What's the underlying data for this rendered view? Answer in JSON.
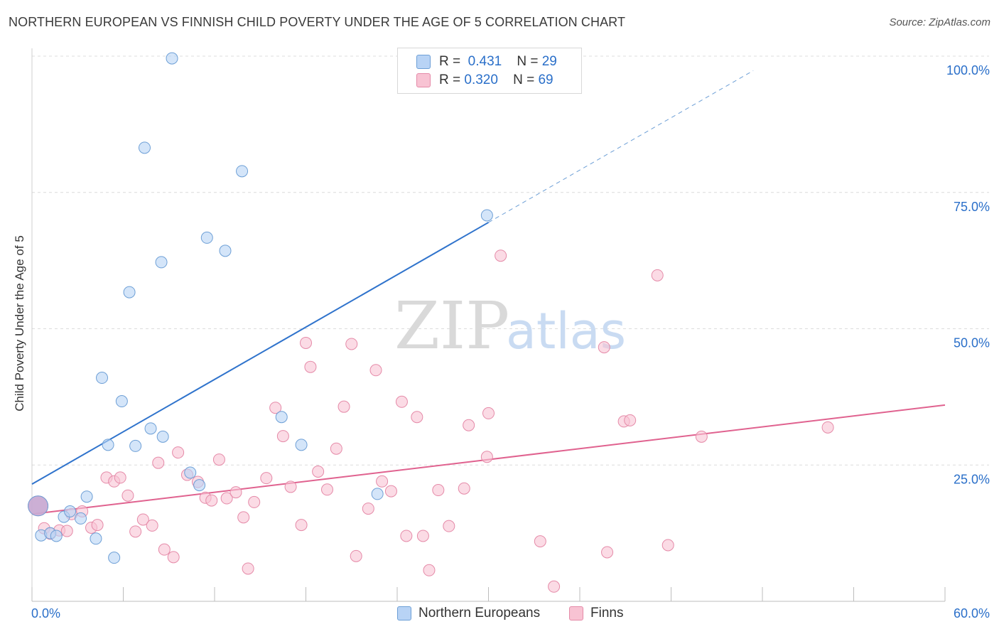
{
  "title": "NORTHERN EUROPEAN VS FINNISH CHILD POVERTY UNDER THE AGE OF 5 CORRELATION CHART",
  "source": "Source: ZipAtlas.com",
  "watermark": {
    "zip": "ZIP",
    "atlas": "atlas"
  },
  "legend": {
    "rows": [
      {
        "r_label": "R =",
        "r_value": "0.431",
        "n_label": "N =",
        "n_value": "29"
      },
      {
        "r_label": "R =",
        "r_value": "0.320",
        "n_label": "N =",
        "n_value": "69"
      }
    ]
  },
  "colors": {
    "blue_fill": "#b8d3f5",
    "blue_stroke": "#6d9fd6",
    "blue_line": "#2f73cc",
    "pink_fill": "#f8c3d3",
    "pink_stroke": "#e58aa8",
    "pink_line": "#e0628f",
    "axis_label": "#2a6fc9",
    "grid": "#dcdcdc"
  },
  "chart_data": {
    "type": "scatter",
    "title": "NORTHERN EUROPEAN VS FINNISH CHILD POVERTY UNDER THE AGE OF 5 CORRELATION CHART",
    "xlabel": "",
    "ylabel": "Child Poverty Under the Age of 5",
    "xlim": [
      0,
      60
    ],
    "ylim": [
      0,
      100
    ],
    "x_tick_labels": [
      "0.0%",
      "60.0%"
    ],
    "y_tick_labels": [
      {
        "value": 100,
        "label": "100.0%"
      },
      {
        "value": 75,
        "label": "75.0%"
      },
      {
        "value": 50,
        "label": "50.0%"
      },
      {
        "value": 25,
        "label": "25.0%"
      }
    ],
    "grid": true,
    "legend_position": "top-center",
    "series": [
      {
        "name": "Northern Europeans",
        "R": 0.431,
        "N": 29,
        "trend": {
          "x0": 0,
          "y0": 21.5,
          "x1": 30,
          "y1": 69.5,
          "dash_to_x": 47.4
        },
        "points": [
          [
            0.4,
            17.5
          ],
          [
            0.6,
            12.1
          ],
          [
            1.2,
            12.5
          ],
          [
            1.6,
            12.0
          ],
          [
            2.1,
            15.5
          ],
          [
            2.5,
            16.5
          ],
          [
            3.2,
            15.2
          ],
          [
            3.6,
            19.2
          ],
          [
            4.2,
            11.5
          ],
          [
            4.6,
            41.0
          ],
          [
            5.0,
            28.7
          ],
          [
            5.4,
            8.0
          ],
          [
            5.9,
            36.7
          ],
          [
            6.4,
            56.7
          ],
          [
            6.8,
            28.5
          ],
          [
            7.4,
            83.2
          ],
          [
            7.8,
            31.7
          ],
          [
            8.5,
            62.2
          ],
          [
            8.6,
            30.2
          ],
          [
            9.2,
            99.6
          ],
          [
            10.4,
            23.6
          ],
          [
            11.0,
            21.3
          ],
          [
            11.5,
            66.7
          ],
          [
            12.7,
            64.3
          ],
          [
            13.8,
            78.9
          ],
          [
            16.4,
            33.8
          ],
          [
            17.7,
            28.7
          ],
          [
            22.7,
            19.7
          ],
          [
            29.9,
            70.8
          ]
        ]
      },
      {
        "name": "Finns",
        "R": 0.32,
        "N": 69,
        "trend": {
          "x0": 0,
          "y0": 16.0,
          "x1": 60,
          "y1": 36.0
        },
        "points": [
          [
            0.4,
            17.5
          ],
          [
            0.8,
            13.4
          ],
          [
            1.2,
            12.4
          ],
          [
            1.8,
            13.0
          ],
          [
            2.3,
            12.9
          ],
          [
            2.6,
            16.0
          ],
          [
            3.3,
            16.5
          ],
          [
            3.9,
            13.5
          ],
          [
            4.3,
            14.0
          ],
          [
            4.9,
            22.7
          ],
          [
            5.4,
            22.0
          ],
          [
            5.8,
            22.7
          ],
          [
            6.3,
            19.4
          ],
          [
            6.8,
            12.8
          ],
          [
            7.3,
            15.0
          ],
          [
            7.9,
            13.9
          ],
          [
            8.3,
            25.4
          ],
          [
            8.7,
            9.5
          ],
          [
            9.3,
            8.1
          ],
          [
            9.6,
            27.3
          ],
          [
            10.2,
            23.2
          ],
          [
            10.9,
            21.9
          ],
          [
            11.4,
            19.0
          ],
          [
            11.8,
            18.5
          ],
          [
            12.3,
            26.0
          ],
          [
            12.8,
            18.9
          ],
          [
            13.4,
            20.0
          ],
          [
            13.9,
            15.4
          ],
          [
            14.2,
            6.0
          ],
          [
            14.6,
            18.2
          ],
          [
            15.4,
            22.6
          ],
          [
            16.0,
            35.5
          ],
          [
            16.5,
            30.3
          ],
          [
            17.0,
            21.0
          ],
          [
            17.7,
            14.0
          ],
          [
            18.0,
            47.4
          ],
          [
            18.3,
            43.0
          ],
          [
            18.8,
            23.8
          ],
          [
            19.4,
            20.5
          ],
          [
            20.0,
            28.0
          ],
          [
            20.5,
            35.7
          ],
          [
            21.0,
            47.2
          ],
          [
            21.3,
            8.3
          ],
          [
            22.1,
            17.0
          ],
          [
            22.6,
            42.4
          ],
          [
            23.0,
            22.0
          ],
          [
            23.6,
            20.2
          ],
          [
            24.3,
            36.6
          ],
          [
            24.6,
            12.0
          ],
          [
            25.3,
            33.8
          ],
          [
            25.7,
            12.0
          ],
          [
            26.1,
            5.7
          ],
          [
            26.7,
            20.4
          ],
          [
            27.4,
            13.8
          ],
          [
            28.4,
            20.7
          ],
          [
            28.7,
            32.3
          ],
          [
            29.9,
            26.5
          ],
          [
            30.0,
            34.5
          ],
          [
            30.8,
            63.4
          ],
          [
            33.4,
            11.0
          ],
          [
            34.3,
            2.7
          ],
          [
            37.6,
            46.6
          ],
          [
            37.8,
            9.0
          ],
          [
            38.9,
            33.0
          ],
          [
            39.3,
            33.2
          ],
          [
            41.1,
            59.8
          ],
          [
            41.8,
            10.3
          ],
          [
            44.0,
            30.2
          ],
          [
            52.3,
            31.9
          ]
        ]
      }
    ]
  }
}
